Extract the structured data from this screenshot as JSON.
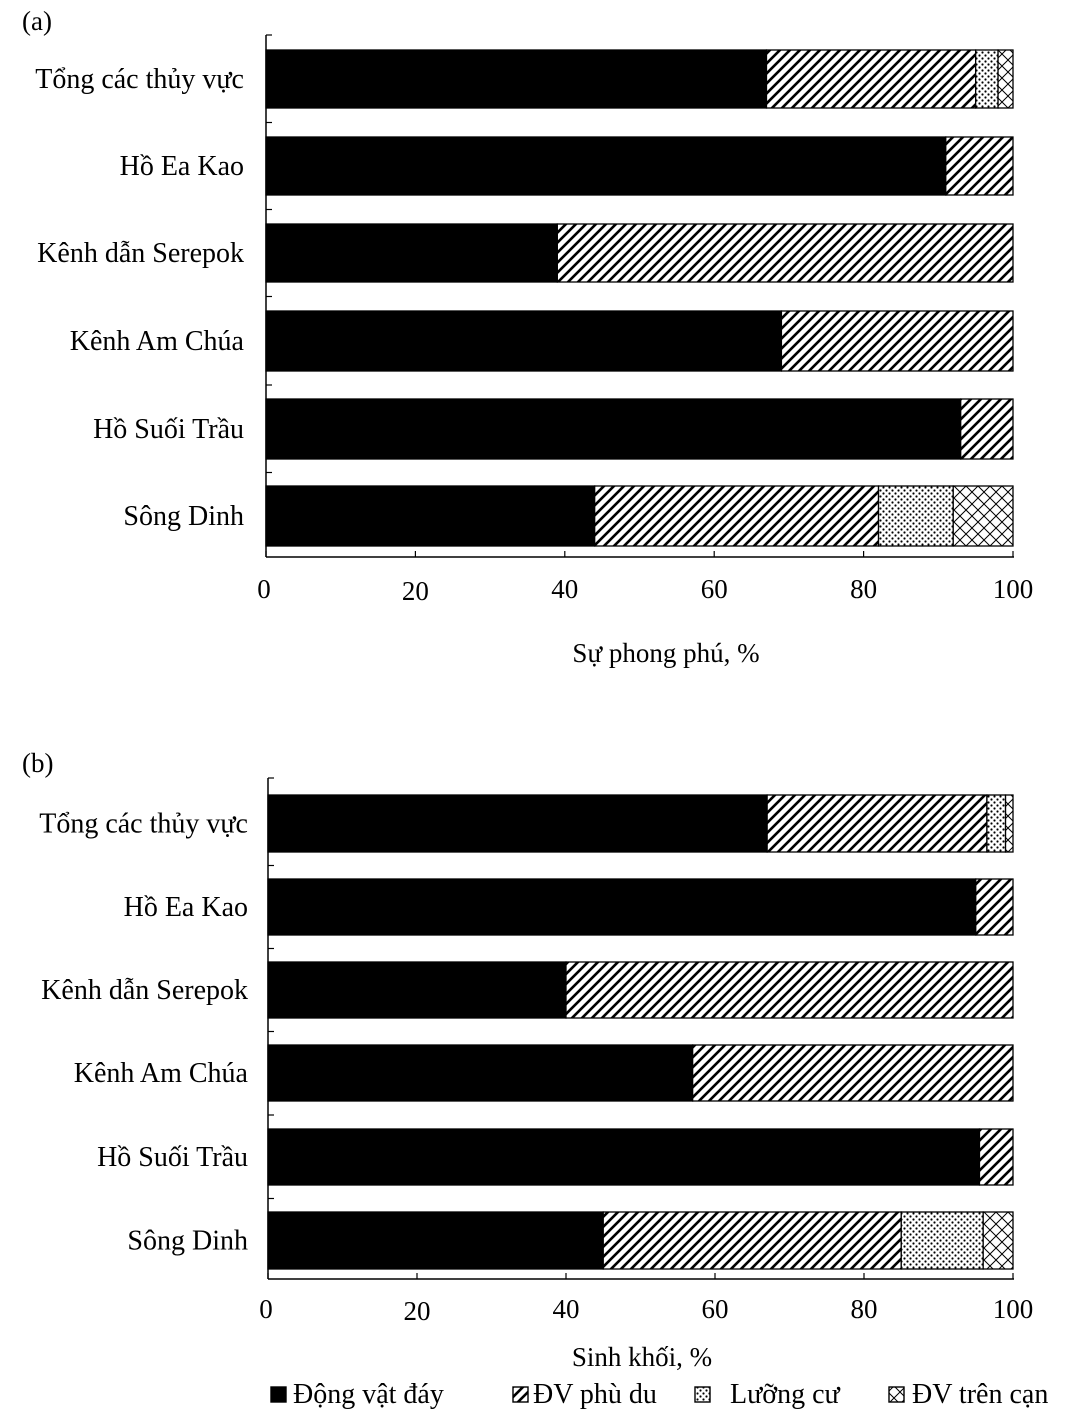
{
  "colors": {
    "ink": "#000000",
    "paper": "#ffffff"
  },
  "legend": {
    "items": [
      {
        "label": "Động vật đáy",
        "pattern": "solid"
      },
      {
        "label": "ĐV phù du",
        "pattern": "hatch"
      },
      {
        "label": "Lưỡng cư",
        "pattern": "dots"
      },
      {
        "label": "ĐV trên cạn",
        "pattern": "crosshatch"
      }
    ]
  },
  "chart_data": [
    {
      "type": "bar",
      "orientation": "horizontal",
      "stacked": true,
      "panel_label": "(a)",
      "xlabel": "Sự phong phú, %",
      "ylabel": "",
      "xlim": [
        0,
        100
      ],
      "xticks": [
        "0",
        "20",
        "40",
        "60",
        "80",
        "100"
      ],
      "categories": [
        "Tổng các thủy vực",
        "Hồ Ea Kao",
        "Kênh dẫn Serepok",
        "Kênh Am Chúa",
        "Hồ Suối Trầu",
        "Sông Dinh"
      ],
      "series": [
        {
          "name": "Động vật đáy",
          "values": [
            67,
            91,
            39,
            69,
            93,
            44
          ]
        },
        {
          "name": "ĐV phù du",
          "values": [
            28,
            9,
            61,
            31,
            7,
            38
          ]
        },
        {
          "name": "Lưỡng cư",
          "values": [
            3,
            0,
            0,
            0,
            0,
            10
          ]
        },
        {
          "name": "ĐV trên cạn",
          "values": [
            2,
            0,
            0,
            0,
            0,
            8
          ]
        }
      ]
    },
    {
      "type": "bar",
      "orientation": "horizontal",
      "stacked": true,
      "panel_label": "(b)",
      "xlabel": "Sinh khối, %",
      "ylabel": "",
      "xlim": [
        0,
        100
      ],
      "xticks": [
        "0",
        "20",
        "40",
        "60",
        "80",
        "100"
      ],
      "categories": [
        "Tổng các thủy vực",
        "Hồ Ea Kao",
        "Kênh dẫn Serepok",
        "Kênh Am Chúa",
        "Hồ Suối Trầu",
        "Sông Dinh"
      ],
      "series": [
        {
          "name": "Động vật đáy",
          "values": [
            67,
            95,
            40,
            57,
            95.5,
            45
          ]
        },
        {
          "name": "ĐV phù du",
          "values": [
            29.5,
            5,
            60,
            43,
            4.5,
            40
          ]
        },
        {
          "name": "Lưỡng cư",
          "values": [
            2.5,
            0,
            0,
            0,
            0,
            11
          ]
        },
        {
          "name": "ĐV trên cạn",
          "values": [
            1,
            0,
            0,
            0,
            0,
            4
          ]
        }
      ]
    }
  ]
}
